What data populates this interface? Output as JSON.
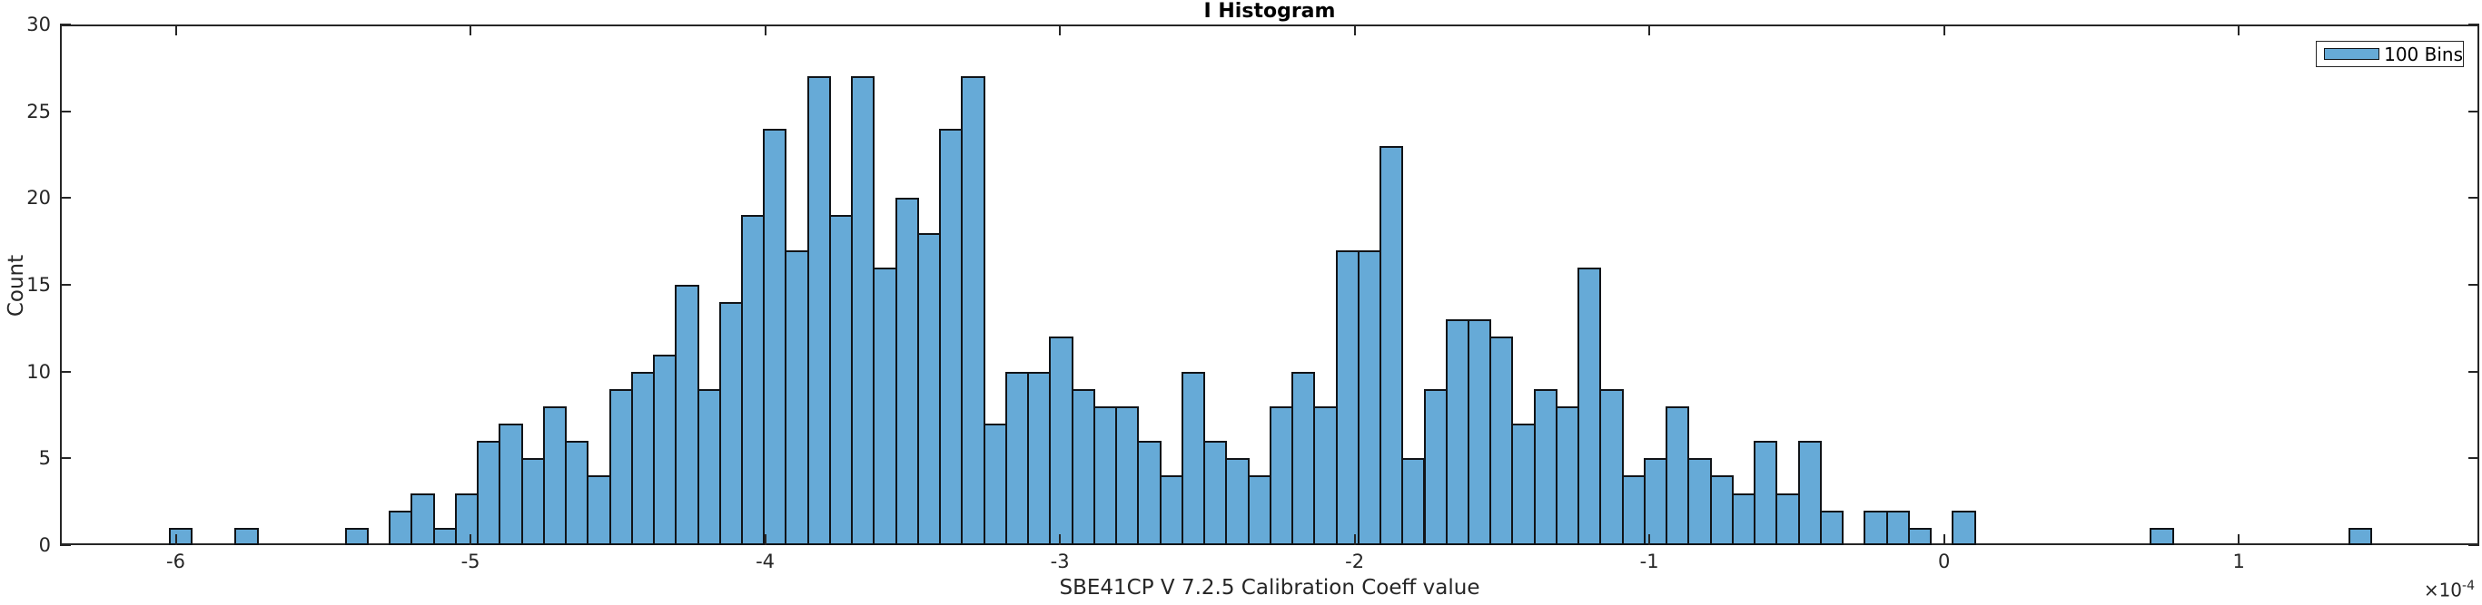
{
  "colors": {
    "bar_fill": "#66aad7",
    "bar_edge": "#111418",
    "axis": "#262626",
    "text": "#262626",
    "title_text": "#000000",
    "background": "#ffffff"
  },
  "legend": {
    "items": [
      "100 Bins"
    ],
    "position": "northeast"
  },
  "chart_data": {
    "type": "histogram",
    "title": "I Histogram",
    "xlabel": "SBE41CP V 7.2.5 Calibration Coeff value",
    "ylabel": "Count",
    "offset_base": "×10",
    "offset_exp": "-4",
    "x_unit_note": "x values in multiples of 1e-4",
    "n_bins": 100,
    "bin_start": -6.021,
    "bin_width": 0.0747,
    "counts": [
      1,
      0,
      0,
      1,
      0,
      0,
      0,
      0,
      1,
      0,
      2,
      3,
      1,
      3,
      6,
      7,
      5,
      8,
      6,
      4,
      9,
      10,
      11,
      15,
      9,
      14,
      19,
      24,
      17,
      27,
      19,
      27,
      16,
      20,
      18,
      24,
      27,
      7,
      10,
      10,
      12,
      9,
      8,
      8,
      6,
      4,
      10,
      6,
      5,
      4,
      8,
      10,
      8,
      17,
      17,
      23,
      5,
      9,
      13,
      13,
      12,
      7,
      9,
      8,
      16,
      9,
      4,
      5,
      8,
      5,
      4,
      3,
      6,
      3,
      6,
      2,
      0,
      2,
      2,
      1,
      0,
      2,
      0,
      0,
      0,
      0,
      0,
      0,
      0,
      0,
      1,
      0,
      0,
      0,
      0,
      0,
      0,
      0,
      0,
      1
    ],
    "xlim": [
      -6.393,
      1.816
    ],
    "ylim": [
      0,
      30
    ],
    "xticks": [
      -6,
      -5,
      -4,
      -3,
      -2,
      -1,
      0,
      1
    ],
    "yticks": [
      0,
      5,
      10,
      15,
      20,
      25,
      30
    ],
    "legend": [
      "100 Bins"
    ],
    "grid": false
  }
}
